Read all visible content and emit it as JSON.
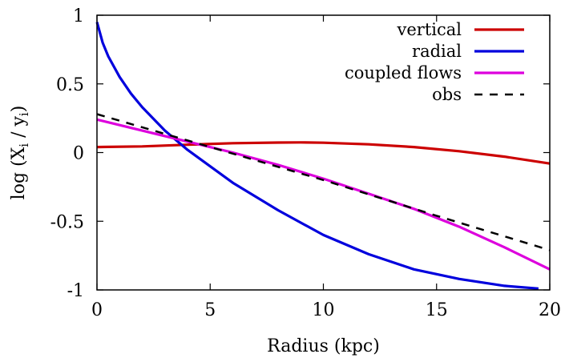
{
  "chart_data": {
    "type": "line",
    "xlabel": "Radius (kpc)",
    "ylabel_parts": [
      "log (X",
      "i",
      " / y",
      "i",
      ")"
    ],
    "xlim": [
      0,
      20
    ],
    "ylim": [
      -1,
      1
    ],
    "xticks": [
      0,
      5,
      10,
      15,
      20
    ],
    "yticks": [
      1,
      0.5,
      0,
      -0.5,
      -1
    ],
    "xtick_labels": [
      "0",
      "5",
      "10",
      "15",
      "20"
    ],
    "ytick_labels": [
      "1",
      "0.5",
      "0",
      "-0.5",
      "-1"
    ],
    "grid": false,
    "legend_position": "top-right",
    "series": [
      {
        "name": "vertical",
        "color": "#cc0000",
        "dash": "solid",
        "x": [
          0,
          2,
          4,
          6,
          8,
          9,
          10,
          12,
          14,
          16,
          18,
          20
        ],
        "y": [
          0.04,
          0.045,
          0.057,
          0.068,
          0.073,
          0.074,
          0.072,
          0.06,
          0.04,
          0.01,
          -0.03,
          -0.08
        ]
      },
      {
        "name": "radial",
        "color": "#0000dd",
        "dash": "solid",
        "x": [
          0,
          0.25,
          0.5,
          1,
          1.5,
          2,
          3,
          4,
          5,
          6,
          8,
          10,
          12,
          14,
          16,
          18,
          19.5
        ],
        "y": [
          0.95,
          0.8,
          0.7,
          0.55,
          0.43,
          0.33,
          0.16,
          0.02,
          -0.1,
          -0.22,
          -0.42,
          -0.6,
          -0.74,
          -0.85,
          -0.92,
          -0.97,
          -0.99
        ]
      },
      {
        "name": "coupled flows",
        "color": "#dd00dd",
        "dash": "solid",
        "x": [
          0,
          2,
          4,
          6,
          8,
          10,
          12,
          14,
          16,
          18,
          20
        ],
        "y": [
          0.24,
          0.16,
          0.08,
          0.0,
          -0.09,
          -0.19,
          -0.3,
          -0.41,
          -0.54,
          -0.69,
          -0.85
        ]
      },
      {
        "name": "obs",
        "color": "#000000",
        "dash": "dashed",
        "x": [
          0,
          5,
          10,
          15,
          20
        ],
        "y": [
          0.28,
          0.04,
          -0.2,
          -0.46,
          -0.71
        ]
      }
    ]
  }
}
